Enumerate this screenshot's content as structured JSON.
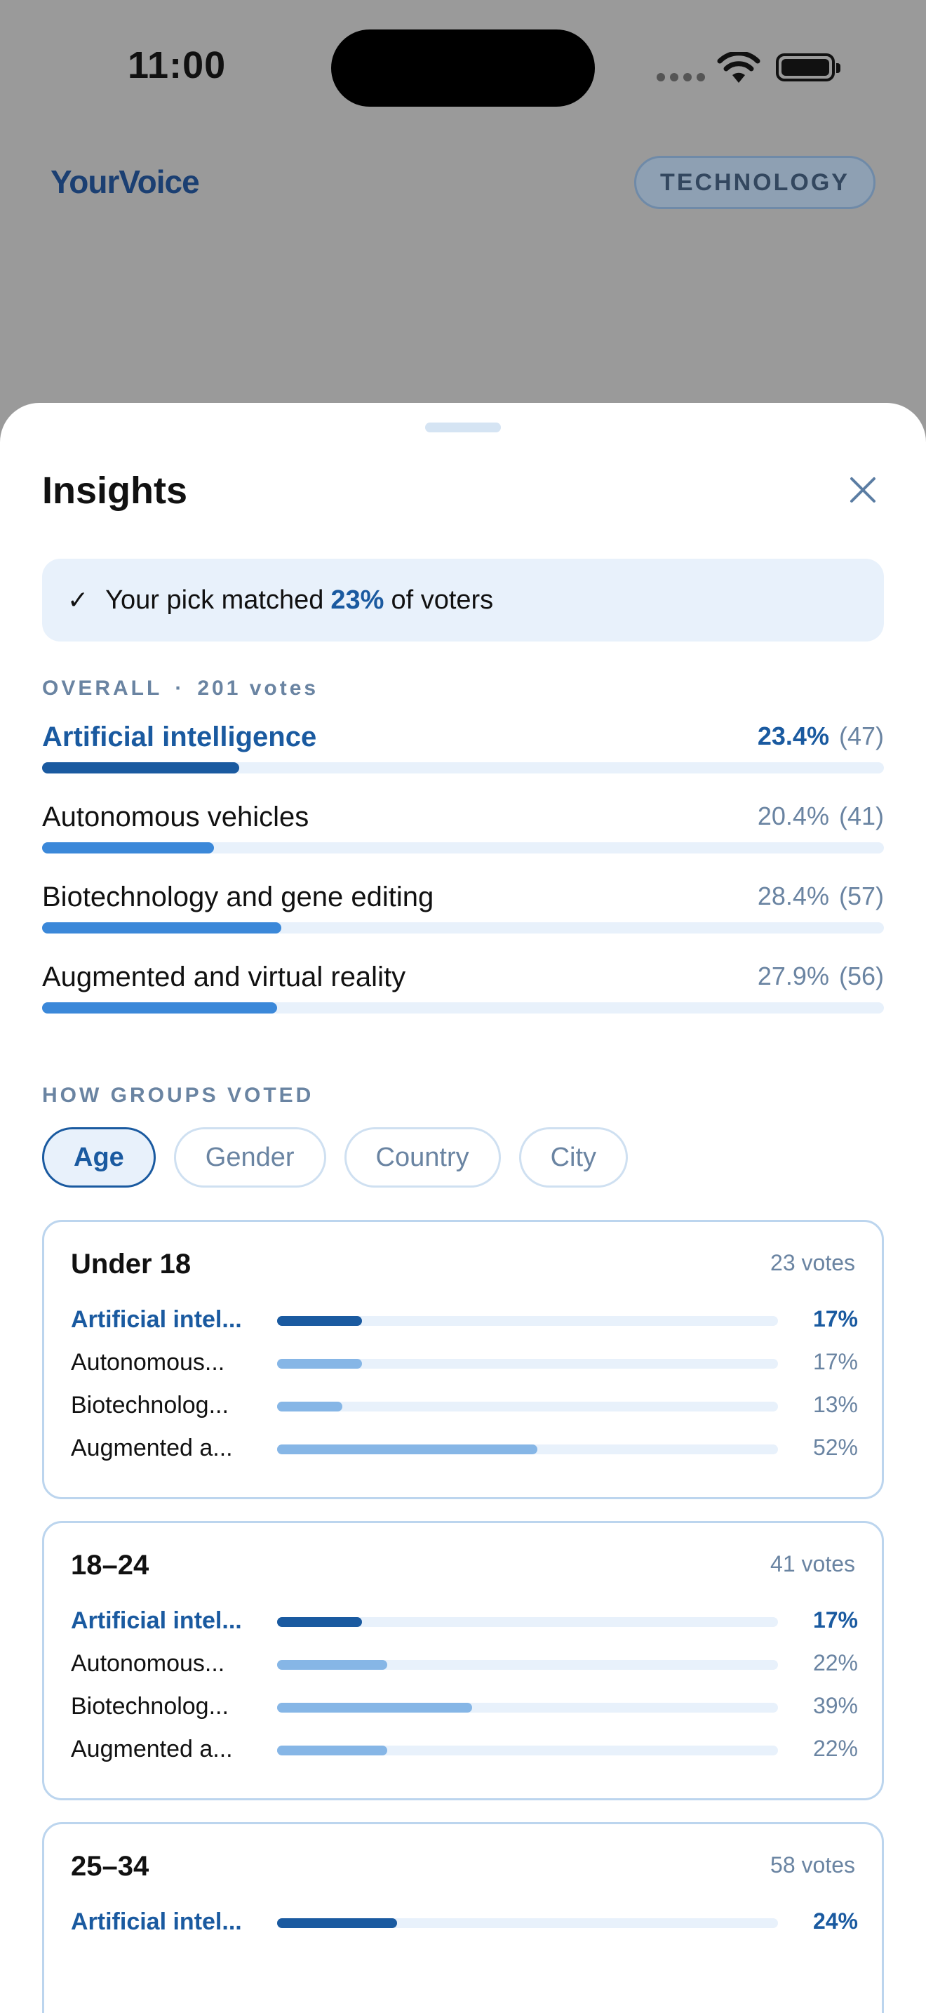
{
  "status_bar": {
    "time": "11:00"
  },
  "header": {
    "brand": "YourVoice",
    "category": "TECHNOLOGY"
  },
  "sheet": {
    "title": "Insights",
    "match": {
      "prefix": "Your pick matched",
      "percent": "23%",
      "suffix": "of voters"
    },
    "overall": {
      "label": "OVERALL",
      "separator": "·",
      "votes": "201 votes",
      "options": [
        {
          "name": "Artificial intelligence",
          "percent": "23.4%",
          "count": "(47)",
          "fraction": 0.234,
          "selected": true
        },
        {
          "name": "Autonomous vehicles",
          "percent": "20.4%",
          "count": "(41)",
          "fraction": 0.204,
          "selected": false
        },
        {
          "name": "Biotechnology and gene editing",
          "percent": "28.4%",
          "count": "(57)",
          "fraction": 0.284,
          "selected": false
        },
        {
          "name": "Augmented and virtual reality",
          "percent": "27.9%",
          "count": "(56)",
          "fraction": 0.279,
          "selected": false
        }
      ]
    },
    "groups": {
      "label": "HOW GROUPS VOTED",
      "tabs": [
        {
          "label": "Age",
          "active": true
        },
        {
          "label": "Gender",
          "active": false
        },
        {
          "label": "Country",
          "active": false
        },
        {
          "label": "City",
          "active": false
        }
      ],
      "cards": [
        {
          "title": "Under 18",
          "votes": "23 votes",
          "rows": [
            {
              "name": "Artificial intel...",
              "percent": "17%",
              "fraction": 0.17,
              "selected": true
            },
            {
              "name": "Autonomous...",
              "percent": "17%",
              "fraction": 0.17,
              "selected": false
            },
            {
              "name": "Biotechnolog...",
              "percent": "13%",
              "fraction": 0.13,
              "selected": false
            },
            {
              "name": "Augmented a...",
              "percent": "52%",
              "fraction": 0.52,
              "selected": false
            }
          ]
        },
        {
          "title": "18–24",
          "votes": "41 votes",
          "rows": [
            {
              "name": "Artificial intel...",
              "percent": "17%",
              "fraction": 0.17,
              "selected": true
            },
            {
              "name": "Autonomous...",
              "percent": "22%",
              "fraction": 0.22,
              "selected": false
            },
            {
              "name": "Biotechnolog...",
              "percent": "39%",
              "fraction": 0.39,
              "selected": false
            },
            {
              "name": "Augmented a...",
              "percent": "22%",
              "fraction": 0.22,
              "selected": false
            }
          ]
        },
        {
          "title": "25–34",
          "votes": "58 votes",
          "rows": [
            {
              "name": "Artificial intel...",
              "percent": "24%",
              "fraction": 0.24,
              "selected": true
            }
          ]
        }
      ]
    }
  }
}
